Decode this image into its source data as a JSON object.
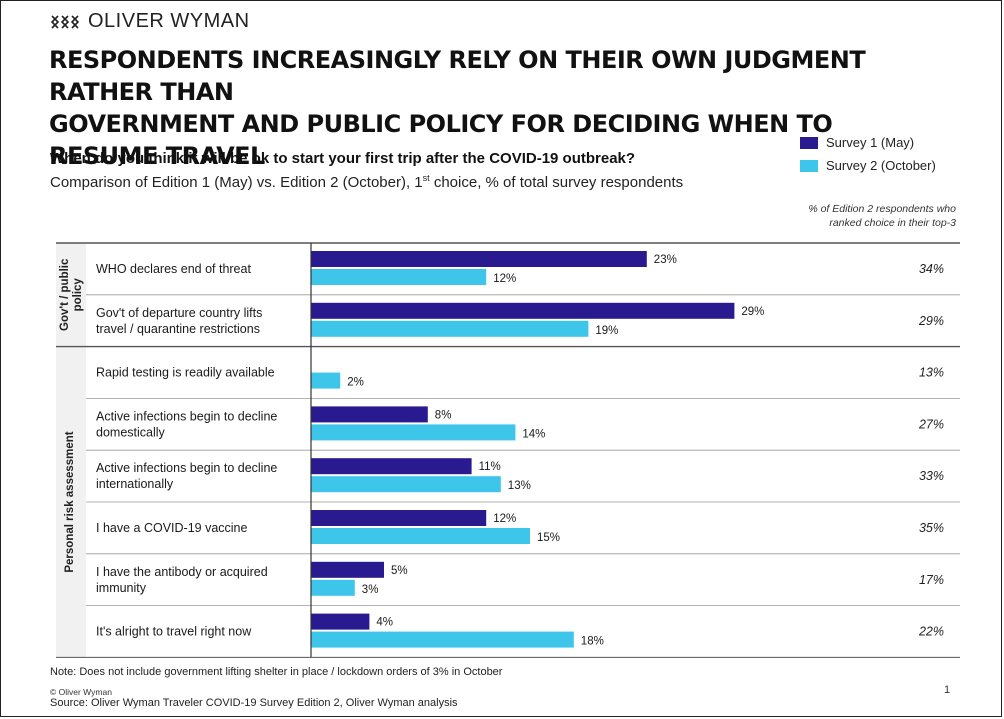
{
  "brand": {
    "name": "OLIVER WYMAN"
  },
  "title_line1": "RESPONDENTS INCREASINGLY RELY ON THEIR OWN JUDGMENT RATHER THAN",
  "title_line2": "GOVERNMENT AND PUBLIC POLICY FOR DECIDING WHEN TO RESUME TRAVEL",
  "question": "When do you think it will be ok to start your first trip after the COVID-19 outbreak?",
  "subquestion_pre": "Comparison of Edition 1 (May) vs. Edition 2 (October), 1",
  "subquestion_sup": "st",
  "subquestion_post": " choice, % of total survey respondents",
  "top3_note_line1": "% of Edition 2 respondents who",
  "top3_note_line2": "ranked choice in their top-3",
  "colors": {
    "survey1": "#2a1a8f",
    "survey2": "#3ec6ea",
    "rule": "#9a9a9a"
  },
  "chart_data": {
    "type": "bar",
    "orientation": "horizontal",
    "series": [
      {
        "name": "Survey 1 (May)",
        "color": "#2a1a8f"
      },
      {
        "name": "Survey 2 (October)",
        "color": "#3ec6ea"
      }
    ],
    "groups": [
      {
        "label_line1": "Gov't / public",
        "label_line2": "policy",
        "rows": [
          0,
          1
        ]
      },
      {
        "label_line1": "Personal risk assessment",
        "label_line2": "",
        "rows": [
          2,
          3,
          4,
          5,
          6,
          7
        ]
      }
    ],
    "rows": [
      {
        "label_line1": "WHO declares end of threat",
        "label_line2": "",
        "s1": 23,
        "s2": 12,
        "top3": "34%"
      },
      {
        "label_line1": "Gov't of departure country lifts",
        "label_line2": "travel / quarantine restrictions",
        "s1": 29,
        "s2": 19,
        "top3": "29%"
      },
      {
        "label_line1": "Rapid testing is readily available",
        "label_line2": "",
        "s1": null,
        "s2": 2,
        "top3": "13%"
      },
      {
        "label_line1": "Active infections begin to decline",
        "label_line2": "domestically",
        "s1": 8,
        "s2": 14,
        "top3": "27%"
      },
      {
        "label_line1": "Active infections begin to decline",
        "label_line2": "internationally",
        "s1": 11,
        "s2": 13,
        "top3": "33%"
      },
      {
        "label_line1": "I have a COVID-19 vaccine",
        "label_line2": "",
        "s1": 12,
        "s2": 15,
        "top3": "35%"
      },
      {
        "label_line1": "I have the antibody or acquired",
        "label_line2": "immunity",
        "s1": 5,
        "s2": 3,
        "top3": "17%"
      },
      {
        "label_line1": "It's alright to travel right now",
        "label_line2": "",
        "s1": 4,
        "s2": 18,
        "top3": "22%"
      }
    ],
    "value_suffix": "%"
  },
  "footnote": "Note: Does not include government lifting shelter in place / lockdown orders of 3% in October",
  "copyright": "© Oliver Wyman",
  "source": "Source: Oliver Wyman Traveler COVID-19 Survey Edition 2, Oliver Wyman analysis",
  "page_number": "1"
}
